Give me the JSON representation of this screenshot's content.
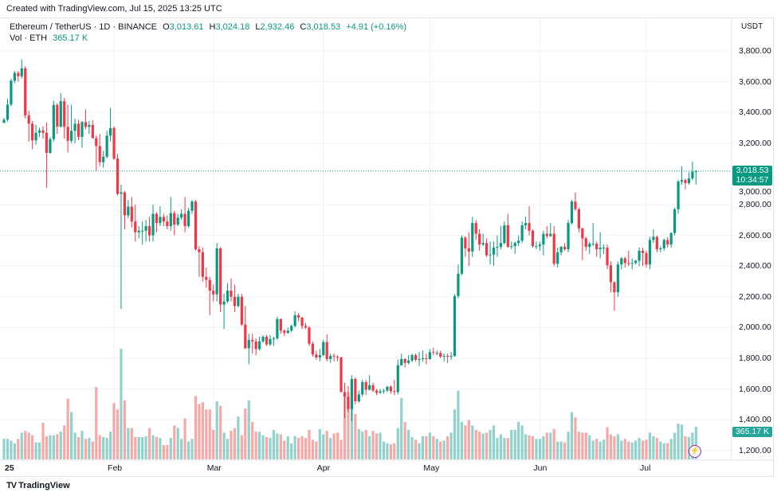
{
  "header": {
    "created": "Created with TradingView.com, Jul 15, 2025 13:25 UTC",
    "symbol": "Ethereum / TetherUS · 1D · BINANCE",
    "o_label": "O",
    "o": "3,013.61",
    "h_label": "H",
    "h": "3,024.18",
    "l_label": "L",
    "l": "2,932.46",
    "c_label": "C",
    "c": "3,018.53",
    "change": "+4.91 (+0.16%)",
    "vol_label": "Vol · ETH",
    "vol": "365.17 K",
    "currency": "USDT"
  },
  "last_price": {
    "value": "3,018.53",
    "countdown": "10:34:57"
  },
  "last_volume": "365.17 K",
  "brand": "TradingView",
  "colors": {
    "up": "#089981",
    "down": "#F23645",
    "vol_up": "#26a69a",
    "vol_down": "#ef5350",
    "alert": "#9c27b0"
  },
  "icons": {
    "alert": "lightning-bolt-icon",
    "logo": "tradingview-logo-icon"
  },
  "chart_data": {
    "type": "candlestick",
    "title": "Ethereum / TetherUS · 1D · BINANCE",
    "start_date": "2025-01-01",
    "interval": "1D",
    "ylim": [
      1130,
      3900
    ],
    "y_ticks": [
      "1,200.00",
      "1,400.00",
      "1,600.00",
      "1,800.00",
      "2,000.00",
      "2,200.00",
      "2,400.00",
      "2,600.00",
      "2,800.00",
      "3,000.00",
      "3,200.00",
      "3,400.00",
      "3,600.00",
      "3,800.00"
    ],
    "y_tick_values": [
      1200,
      1400,
      1600,
      1800,
      2000,
      2200,
      2400,
      2600,
      2800,
      3000,
      3200,
      3400,
      3600,
      3800
    ],
    "x_ticks": [
      {
        "label": "25",
        "date": "2025-01-01"
      },
      {
        "label": "Feb",
        "date": "2025-02-01"
      },
      {
        "label": "Mar",
        "date": "2025-03-01"
      },
      {
        "label": "Apr",
        "date": "2025-04-01"
      },
      {
        "label": "May",
        "date": "2025-05-01"
      },
      {
        "label": "Jun",
        "date": "2025-06-01"
      },
      {
        "label": "Jul",
        "date": "2025-07-01"
      }
    ],
    "grid": true,
    "ohlc": [
      [
        3332,
        3365,
        3330,
        3353
      ],
      [
        3353,
        3490,
        3340,
        3451
      ],
      [
        3451,
        3620,
        3440,
        3606
      ],
      [
        3606,
        3670,
        3590,
        3657
      ],
      [
        3657,
        3670,
        3600,
        3635
      ],
      [
        3635,
        3745,
        3620,
        3687
      ],
      [
        3687,
        3700,
        3360,
        3380
      ],
      [
        3380,
        3410,
        3210,
        3327
      ],
      [
        3327,
        3345,
        3160,
        3218
      ],
      [
        3218,
        3320,
        3190,
        3268
      ],
      [
        3268,
        3300,
        3240,
        3283
      ],
      [
        3283,
        3310,
        3230,
        3267
      ],
      [
        3267,
        3335,
        2910,
        3137
      ],
      [
        3137,
        3240,
        3130,
        3226
      ],
      [
        3226,
        3475,
        3210,
        3449
      ],
      [
        3449,
        3460,
        3260,
        3308
      ],
      [
        3308,
        3525,
        3300,
        3473
      ],
      [
        3473,
        3495,
        3230,
        3306
      ],
      [
        3306,
        3450,
        3140,
        3215
      ],
      [
        3215,
        3450,
        3200,
        3280
      ],
      [
        3280,
        3360,
        3200,
        3327
      ],
      [
        3327,
        3350,
        3220,
        3241
      ],
      [
        3241,
        3345,
        3170,
        3337
      ],
      [
        3337,
        3420,
        3290,
        3306
      ],
      [
        3306,
        3345,
        3260,
        3318
      ],
      [
        3318,
        3350,
        3230,
        3233
      ],
      [
        3233,
        3250,
        3020,
        3181
      ],
      [
        3181,
        3260,
        3050,
        3076
      ],
      [
        3076,
        3150,
        3040,
        3112
      ],
      [
        3112,
        3280,
        3100,
        3249
      ],
      [
        3249,
        3430,
        3210,
        3298
      ],
      [
        3298,
        3310,
        3090,
        3100
      ],
      [
        3100,
        3130,
        2860,
        2870
      ],
      [
        2870,
        2930,
        2120,
        2880
      ],
      [
        2880,
        2890,
        2640,
        2730
      ],
      [
        2730,
        2830,
        2710,
        2787
      ],
      [
        2787,
        2850,
        2650,
        2690
      ],
      [
        2690,
        2800,
        2560,
        2620
      ],
      [
        2620,
        2660,
        2580,
        2630
      ],
      [
        2630,
        2690,
        2540,
        2630
      ],
      [
        2630,
        2700,
        2560,
        2660
      ],
      [
        2660,
        2720,
        2560,
        2600
      ],
      [
        2600,
        2800,
        2560,
        2740
      ],
      [
        2740,
        2750,
        2620,
        2680
      ],
      [
        2680,
        2790,
        2660,
        2720
      ],
      [
        2720,
        2740,
        2660,
        2690
      ],
      [
        2690,
        2730,
        2640,
        2660
      ],
      [
        2660,
        2850,
        2630,
        2745
      ],
      [
        2745,
        2760,
        2600,
        2670
      ],
      [
        2670,
        2740,
        2660,
        2715
      ],
      [
        2715,
        2770,
        2700,
        2740
      ],
      [
        2740,
        2850,
        2620,
        2660
      ],
      [
        2660,
        2780,
        2650,
        2760
      ],
      [
        2760,
        2830,
        2740,
        2820
      ],
      [
        2820,
        2830,
        2500,
        2510
      ],
      [
        2510,
        2530,
        2330,
        2490
      ],
      [
        2490,
        2520,
        2300,
        2330
      ],
      [
        2330,
        2390,
        2260,
        2310
      ],
      [
        2310,
        2330,
        2080,
        2240
      ],
      [
        2240,
        2280,
        2170,
        2216
      ],
      [
        2216,
        2550,
        2170,
        2515
      ],
      [
        2515,
        2525,
        2100,
        2150
      ],
      [
        2150,
        2220,
        1990,
        2170
      ],
      [
        2170,
        2290,
        2160,
        2240
      ],
      [
        2240,
        2320,
        2170,
        2200
      ],
      [
        2200,
        2280,
        2100,
        2140
      ],
      [
        2140,
        2220,
        2130,
        2200
      ],
      [
        2200,
        2220,
        2010,
        2020
      ],
      [
        2020,
        2140,
        1860,
        1865
      ],
      [
        1865,
        1960,
        1760,
        1920
      ],
      [
        1920,
        1960,
        1830,
        1910
      ],
      [
        1910,
        1930,
        1820,
        1860
      ],
      [
        1860,
        1940,
        1850,
        1910
      ],
      [
        1910,
        1950,
        1900,
        1940
      ],
      [
        1940,
        1950,
        1880,
        1890
      ],
      [
        1890,
        1950,
        1880,
        1925
      ],
      [
        1925,
        1940,
        1880,
        1930
      ],
      [
        1930,
        2070,
        1920,
        2055
      ],
      [
        2055,
        2060,
        1960,
        1980
      ],
      [
        1980,
        1990,
        1945,
        1965
      ],
      [
        1965,
        2000,
        1960,
        1980
      ],
      [
        1980,
        2020,
        1970,
        2010
      ],
      [
        2010,
        2105,
        2000,
        2080
      ],
      [
        2080,
        2095,
        2040,
        2065
      ],
      [
        2065,
        2070,
        1990,
        2010
      ],
      [
        2010,
        2030,
        1990,
        2000
      ],
      [
        2000,
        2010,
        1880,
        1895
      ],
      [
        1895,
        1910,
        1810,
        1825
      ],
      [
        1825,
        1850,
        1790,
        1805
      ],
      [
        1805,
        1860,
        1780,
        1820
      ],
      [
        1820,
        1920,
        1815,
        1905
      ],
      [
        1905,
        1955,
        1780,
        1795
      ],
      [
        1795,
        1830,
        1770,
        1815
      ],
      [
        1815,
        1830,
        1780,
        1810
      ],
      [
        1810,
        1820,
        1780,
        1805
      ],
      [
        1805,
        1810,
        1580,
        1580
      ],
      [
        1580,
        1640,
        1410,
        1550
      ],
      [
        1550,
        1620,
        1450,
        1470
      ],
      [
        1470,
        1690,
        1390,
        1665
      ],
      [
        1665,
        1675,
        1500,
        1520
      ],
      [
        1520,
        1590,
        1510,
        1565
      ],
      [
        1565,
        1660,
        1550,
        1645
      ],
      [
        1645,
        1660,
        1560,
        1595
      ],
      [
        1595,
        1690,
        1590,
        1625
      ],
      [
        1625,
        1640,
        1580,
        1590
      ],
      [
        1590,
        1600,
        1560,
        1575
      ],
      [
        1575,
        1600,
        1570,
        1585
      ],
      [
        1585,
        1600,
        1570,
        1590
      ],
      [
        1590,
        1620,
        1580,
        1615
      ],
      [
        1615,
        1625,
        1570,
        1585
      ],
      [
        1585,
        1660,
        1560,
        1580
      ],
      [
        1580,
        1790,
        1565,
        1755
      ],
      [
        1755,
        1830,
        1750,
        1795
      ],
      [
        1795,
        1800,
        1740,
        1770
      ],
      [
        1770,
        1820,
        1760,
        1785
      ],
      [
        1785,
        1830,
        1775,
        1820
      ],
      [
        1820,
        1830,
        1780,
        1790
      ],
      [
        1790,
        1840,
        1750,
        1795
      ],
      [
        1795,
        1850,
        1780,
        1800
      ],
      [
        1800,
        1830,
        1760,
        1795
      ],
      [
        1795,
        1860,
        1790,
        1840
      ],
      [
        1840,
        1870,
        1820,
        1835
      ],
      [
        1835,
        1850,
        1820,
        1835
      ],
      [
        1835,
        1850,
        1800,
        1810
      ],
      [
        1810,
        1830,
        1780,
        1815
      ],
      [
        1815,
        1830,
        1770,
        1810
      ],
      [
        1810,
        1840,
        1790,
        1815
      ],
      [
        1815,
        2215,
        1810,
        2205
      ],
      [
        2205,
        2410,
        2190,
        2350
      ],
      [
        2350,
        2600,
        2340,
        2585
      ],
      [
        2585,
        2595,
        2460,
        2515
      ],
      [
        2515,
        2620,
        2400,
        2495
      ],
      [
        2495,
        2720,
        2460,
        2680
      ],
      [
        2680,
        2700,
        2570,
        2610
      ],
      [
        2610,
        2640,
        2500,
        2540
      ],
      [
        2540,
        2610,
        2530,
        2550
      ],
      [
        2550,
        2580,
        2460,
        2470
      ],
      [
        2470,
        2560,
        2410,
        2475
      ],
      [
        2475,
        2560,
        2400,
        2520
      ],
      [
        2520,
        2600,
        2460,
        2525
      ],
      [
        2525,
        2660,
        2510,
        2550
      ],
      [
        2550,
        2690,
        2540,
        2665
      ],
      [
        2665,
        2740,
        2520,
        2525
      ],
      [
        2525,
        2560,
        2510,
        2530
      ],
      [
        2530,
        2560,
        2480,
        2550
      ],
      [
        2550,
        2600,
        2530,
        2565
      ],
      [
        2565,
        2690,
        2550,
        2665
      ],
      [
        2665,
        2720,
        2640,
        2680
      ],
      [
        2680,
        2790,
        2600,
        2630
      ],
      [
        2630,
        2640,
        2520,
        2530
      ],
      [
        2530,
        2560,
        2510,
        2530
      ],
      [
        2530,
        2560,
        2500,
        2540
      ],
      [
        2540,
        2630,
        2470,
        2610
      ],
      [
        2610,
        2660,
        2580,
        2595
      ],
      [
        2595,
        2680,
        2590,
        2610
      ],
      [
        2610,
        2660,
        2400,
        2415
      ],
      [
        2415,
        2520,
        2390,
        2490
      ],
      [
        2490,
        2530,
        2470,
        2525
      ],
      [
        2525,
        2550,
        2500,
        2510
      ],
      [
        2510,
        2700,
        2490,
        2680
      ],
      [
        2680,
        2830,
        2670,
        2820
      ],
      [
        2820,
        2880,
        2760,
        2770
      ],
      [
        2770,
        2780,
        2620,
        2645
      ],
      [
        2645,
        2650,
        2440,
        2580
      ],
      [
        2580,
        2590,
        2500,
        2525
      ],
      [
        2525,
        2560,
        2480,
        2545
      ],
      [
        2545,
        2680,
        2530,
        2545
      ],
      [
        2545,
        2560,
        2460,
        2510
      ],
      [
        2510,
        2620,
        2450,
        2520
      ],
      [
        2520,
        2540,
        2480,
        2520
      ],
      [
        2520,
        2540,
        2380,
        2405
      ],
      [
        2405,
        2430,
        2230,
        2295
      ],
      [
        2295,
        2300,
        2110,
        2230
      ],
      [
        2230,
        2430,
        2200,
        2410
      ],
      [
        2410,
        2460,
        2380,
        2450
      ],
      [
        2450,
        2460,
        2390,
        2420
      ],
      [
        2420,
        2500,
        2400,
        2415
      ],
      [
        2415,
        2450,
        2380,
        2420
      ],
      [
        2420,
        2440,
        2410,
        2435
      ],
      [
        2435,
        2520,
        2400,
        2500
      ],
      [
        2500,
        2520,
        2400,
        2485
      ],
      [
        2485,
        2500,
        2390,
        2410
      ],
      [
        2410,
        2590,
        2380,
        2570
      ],
      [
        2570,
        2640,
        2550,
        2590
      ],
      [
        2590,
        2600,
        2490,
        2510
      ],
      [
        2510,
        2530,
        2490,
        2515
      ],
      [
        2515,
        2580,
        2500,
        2570
      ],
      [
        2570,
        2590,
        2520,
        2540
      ],
      [
        2540,
        2620,
        2520,
        2615
      ],
      [
        2615,
        2780,
        2600,
        2770
      ],
      [
        2770,
        2960,
        2740,
        2950
      ],
      [
        2950,
        3050,
        2930,
        2960
      ],
      [
        2960,
        2970,
        2900,
        2940
      ],
      [
        2940,
        3010,
        2930,
        2970
      ],
      [
        2970,
        3080,
        2960,
        3013.61
      ],
      [
        3013.61,
        3024.18,
        2932.46,
        3018.53
      ]
    ],
    "volume_k": [
      230,
      230,
      210,
      180,
      230,
      300,
      320,
      300,
      270,
      190,
      190,
      410,
      260,
      270,
      270,
      280,
      310,
      380,
      680,
      530,
      300,
      250,
      320,
      230,
      240,
      200,
      810,
      270,
      250,
      240,
      310,
      630,
      560,
      1240,
      660,
      350,
      350,
      250,
      250,
      250,
      260,
      350,
      270,
      250,
      240,
      160,
      160,
      240,
      380,
      350,
      230,
      460,
      200,
      230,
      710,
      620,
      640,
      560,
      560,
      330,
      650,
      600,
      300,
      230,
      320,
      350,
      480,
      270,
      570,
      660,
      420,
      310,
      310,
      270,
      250,
      240,
      330,
      290,
      280,
      210,
      260,
      180,
      260,
      240,
      260,
      240,
      330,
      220,
      200,
      340,
      280,
      320,
      240,
      290,
      300,
      220,
      700,
      760,
      600,
      510,
      340,
      310,
      330,
      260,
      320,
      290,
      300,
      200,
      180,
      170,
      180,
      350,
      690,
      420,
      330,
      250,
      220,
      180,
      260,
      260,
      300,
      260,
      230,
      200,
      210,
      260,
      300,
      560,
      770,
      420,
      380,
      440,
      380,
      330,
      310,
      290,
      300,
      330,
      380,
      240,
      280,
      240,
      240,
      330,
      330,
      420,
      380,
      280,
      270,
      260,
      230,
      230,
      260,
      300,
      300,
      340,
      200,
      200,
      190,
      310,
      530,
      470,
      310,
      300,
      300,
      270,
      210,
      230,
      200,
      220,
      360,
      280,
      260,
      280,
      210,
      230,
      200,
      190,
      210,
      240,
      210,
      220,
      300,
      260,
      240,
      200,
      180,
      180,
      230,
      300,
      400,
      390,
      260,
      250,
      300,
      365.17
    ],
    "last_close": 3018.53
  }
}
